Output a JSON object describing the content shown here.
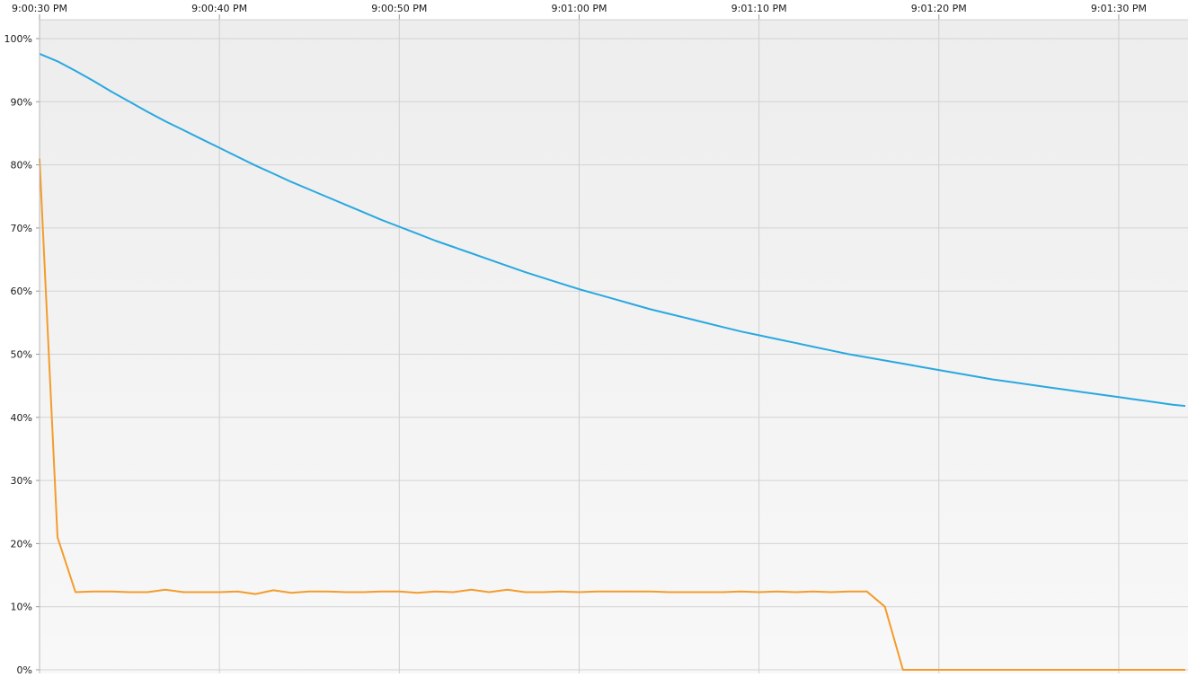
{
  "chart_data": {
    "type": "line",
    "x_tick_labels": [
      "9:00:30 PM",
      "9:00:40 PM",
      "9:00:50 PM",
      "9:01:00 PM",
      "9:01:10 PM",
      "9:01:20 PM",
      "9:01:30 PM"
    ],
    "x_tick_seconds": [
      30,
      40,
      50,
      60,
      70,
      80,
      90
    ],
    "xlim_seconds": [
      30,
      93.7
    ],
    "y_tick_labels": [
      "0%",
      "10%",
      "20%",
      "30%",
      "40%",
      "50%",
      "60%",
      "70%",
      "80%",
      "90%",
      "100%"
    ],
    "ylim": [
      0,
      100
    ],
    "grid": true,
    "series": [
      {
        "color": "#29a8e0",
        "x_seconds": [
          30,
          31,
          32,
          33,
          34,
          35,
          36,
          37,
          38,
          39,
          40,
          41,
          42,
          43,
          44,
          45,
          46,
          47,
          48,
          49,
          50,
          51,
          52,
          53,
          54,
          55,
          56,
          57,
          58,
          59,
          60,
          61,
          62,
          63,
          64,
          65,
          66,
          67,
          68,
          69,
          70,
          71,
          72,
          73,
          74,
          75,
          76,
          77,
          78,
          79,
          80,
          81,
          82,
          83,
          84,
          85,
          86,
          87,
          88,
          89,
          90,
          91,
          92,
          93,
          93.7
        ],
        "values": [
          97.6,
          96.4,
          94.9,
          93.3,
          91.6,
          90.0,
          88.4,
          86.9,
          85.5,
          84.1,
          82.7,
          81.3,
          79.9,
          78.6,
          77.3,
          76.1,
          74.9,
          73.7,
          72.5,
          71.3,
          70.2,
          69.1,
          68.0,
          67.0,
          66.0,
          65.0,
          64.0,
          63.0,
          62.1,
          61.2,
          60.3,
          59.5,
          58.7,
          57.9,
          57.1,
          56.4,
          55.7,
          55.0,
          54.3,
          53.6,
          53.0,
          52.4,
          51.8,
          51.2,
          50.6,
          50.0,
          49.5,
          49.0,
          48.5,
          48.0,
          47.5,
          47.0,
          46.5,
          46.0,
          45.6,
          45.2,
          44.8,
          44.4,
          44.0,
          43.6,
          43.2,
          42.8,
          42.4,
          42.0,
          41.8
        ]
      },
      {
        "color": "#f39c2c",
        "x_seconds": [
          30,
          31,
          32,
          33,
          34,
          35,
          36,
          37,
          38,
          39,
          40,
          41,
          42,
          43,
          44,
          45,
          46,
          47,
          48,
          49,
          50,
          51,
          52,
          53,
          54,
          55,
          56,
          57,
          58,
          59,
          60,
          61,
          62,
          63,
          64,
          65,
          66,
          67,
          68,
          69,
          70,
          71,
          72,
          73,
          74,
          75,
          76,
          77,
          78,
          79,
          80,
          81,
          82,
          83,
          84,
          85,
          86,
          87,
          88,
          89,
          90,
          91,
          92,
          93,
          93.7
        ],
        "values": [
          81.0,
          21.0,
          12.3,
          12.4,
          12.4,
          12.3,
          12.3,
          12.7,
          12.3,
          12.3,
          12.3,
          12.4,
          12.0,
          12.6,
          12.2,
          12.4,
          12.4,
          12.3,
          12.3,
          12.4,
          12.4,
          12.2,
          12.4,
          12.3,
          12.7,
          12.3,
          12.7,
          12.3,
          12.3,
          12.4,
          12.3,
          12.4,
          12.4,
          12.4,
          12.4,
          12.3,
          12.3,
          12.3,
          12.3,
          12.4,
          12.3,
          12.4,
          12.3,
          12.4,
          12.3,
          12.4,
          12.4,
          10.0,
          0.0,
          0.0,
          0.0,
          0.0,
          0.0,
          0.0,
          0.0,
          0.0,
          0.0,
          0.0,
          0.0,
          0.0,
          0.0,
          0.0,
          0.0,
          0.0,
          0.0
        ]
      }
    ]
  }
}
